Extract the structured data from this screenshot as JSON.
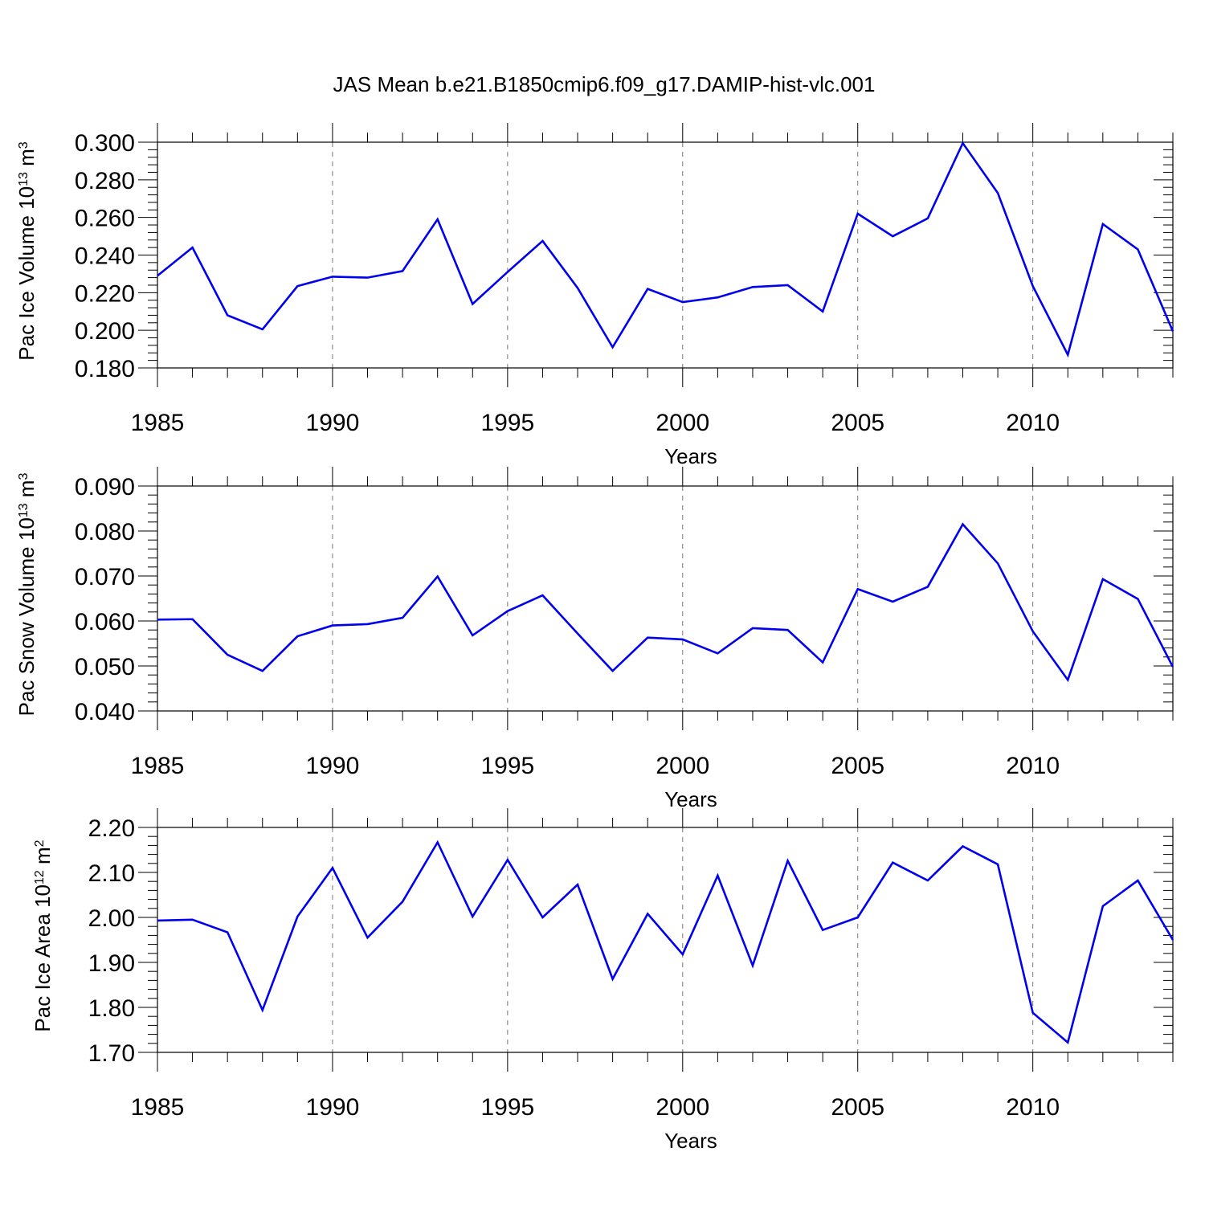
{
  "chart_data": [
    {
      "type": "line",
      "title": "JAS Mean b.e21.B1850cmip6.f09_g17.DAMIP-hist-vlc.001",
      "xlabel": "Years",
      "ylabel": "Pac Ice Volume 10",
      "ylabel_exp": "13",
      "ylabel_unit": " m",
      "ylabel_unit_exp": "3",
      "xlim": [
        1985,
        2014
      ],
      "ylim": [
        0.18,
        0.3
      ],
      "xticks": [
        1985,
        1990,
        1995,
        2000,
        2005,
        2010
      ],
      "xtick_labels": [
        "1985",
        "1990",
        "1995",
        "2000",
        "2005",
        "2010"
      ],
      "yticks": [
        0.18,
        0.2,
        0.22,
        0.24,
        0.26,
        0.28,
        0.3
      ],
      "ytick_labels": [
        "0.180",
        "0.200",
        "0.220",
        "0.240",
        "0.260",
        "0.280",
        "0.300"
      ],
      "grid": "vertical dashed at major x ticks",
      "line_color": "#0000ee",
      "x": [
        1985,
        1986,
        1987,
        1988,
        1989,
        1990,
        1991,
        1992,
        1993,
        1994,
        1995,
        1996,
        1997,
        1998,
        1999,
        2000,
        2001,
        2002,
        2003,
        2004,
        2005,
        2006,
        2007,
        2008,
        2009,
        2010,
        2011,
        2012,
        2013,
        2014
      ],
      "values": [
        0.229,
        0.244,
        0.208,
        0.2005,
        0.2235,
        0.2285,
        0.228,
        0.2315,
        0.259,
        0.214,
        0.231,
        0.2475,
        0.2225,
        0.191,
        0.222,
        0.215,
        0.2175,
        0.223,
        0.224,
        0.21,
        0.262,
        0.25,
        0.2595,
        0.2995,
        0.273,
        0.2235,
        0.187,
        0.2565,
        0.243,
        0.1995
      ]
    },
    {
      "type": "line",
      "title": "",
      "xlabel": "Years",
      "ylabel": "Pac Snow Volume 10",
      "ylabel_exp": "13",
      "ylabel_unit": " m",
      "ylabel_unit_exp": "3",
      "xlim": [
        1985,
        2014
      ],
      "ylim": [
        0.04,
        0.09
      ],
      "xticks": [
        1985,
        1990,
        1995,
        2000,
        2005,
        2010
      ],
      "xtick_labels": [
        "1985",
        "1990",
        "1995",
        "2000",
        "2005",
        "2010"
      ],
      "yticks": [
        0.04,
        0.05,
        0.06,
        0.07,
        0.08,
        0.09
      ],
      "ytick_labels": [
        "0.040",
        "0.050",
        "0.060",
        "0.070",
        "0.080",
        "0.090"
      ],
      "grid": "vertical dashed at major x ticks",
      "line_color": "#0000ee",
      "x": [
        1985,
        1986,
        1987,
        1988,
        1989,
        1990,
        1991,
        1992,
        1993,
        1994,
        1995,
        1996,
        1997,
        1998,
        1999,
        2000,
        2001,
        2002,
        2003,
        2004,
        2005,
        2006,
        2007,
        2008,
        2009,
        2010,
        2011,
        2012,
        2013,
        2014
      ],
      "values": [
        0.0603,
        0.0604,
        0.0525,
        0.0489,
        0.0566,
        0.059,
        0.0593,
        0.0607,
        0.0699,
        0.0568,
        0.0622,
        0.0657,
        0.0572,
        0.0489,
        0.0563,
        0.0559,
        0.0528,
        0.0584,
        0.058,
        0.0508,
        0.0671,
        0.0643,
        0.0676,
        0.0815,
        0.0728,
        0.0577,
        0.0469,
        0.0693,
        0.0649,
        0.0498
      ]
    },
    {
      "type": "line",
      "title": "",
      "xlabel": "Years",
      "ylabel": "Pac Ice Area 10",
      "ylabel_exp": "12",
      "ylabel_unit": " m",
      "ylabel_unit_exp": "2",
      "xlim": [
        1985,
        2014
      ],
      "ylim": [
        1.7,
        2.2
      ],
      "xticks": [
        1985,
        1990,
        1995,
        2000,
        2005,
        2010
      ],
      "xtick_labels": [
        "1985",
        "1990",
        "1995",
        "2000",
        "2005",
        "2010"
      ],
      "yticks": [
        1.7,
        1.8,
        1.9,
        2.0,
        2.1,
        2.2
      ],
      "ytick_labels": [
        "1.70",
        "1.80",
        "1.90",
        "2.00",
        "2.10",
        "2.20"
      ],
      "grid": "vertical dashed at major x ticks",
      "line_color": "#0000ee",
      "x": [
        1985,
        1986,
        1987,
        1988,
        1989,
        1990,
        1991,
        1992,
        1993,
        1994,
        1995,
        1996,
        1997,
        1998,
        1999,
        2000,
        2001,
        2002,
        2003,
        2004,
        2005,
        2006,
        2007,
        2008,
        2009,
        2010,
        2011,
        2012,
        2013,
        2014
      ],
      "values": [
        1.993,
        1.995,
        1.967,
        1.794,
        2.002,
        2.11,
        1.955,
        2.035,
        2.167,
        2.002,
        2.128,
        2.0,
        2.073,
        1.863,
        2.008,
        1.918,
        2.093,
        1.893,
        2.126,
        1.972,
        2.0,
        2.122,
        2.082,
        2.158,
        2.118,
        1.788,
        1.722,
        2.025,
        2.082,
        1.95
      ]
    }
  ]
}
